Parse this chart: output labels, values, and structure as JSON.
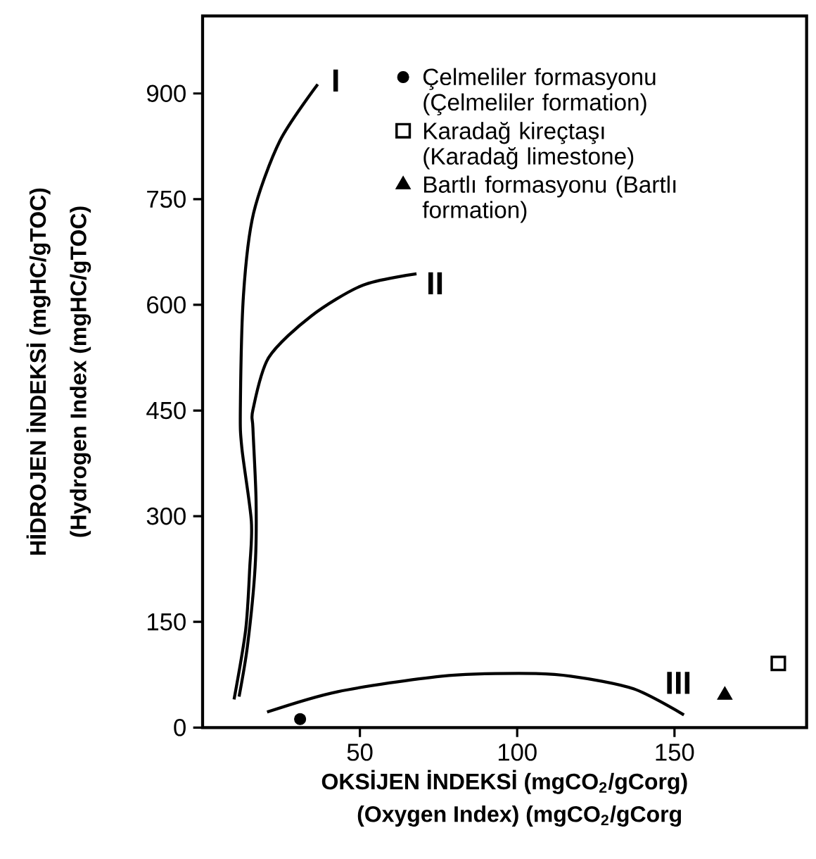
{
  "chart_data": {
    "type": "line",
    "xlabel": "OKSİJEN İNDEKSİ (mgCO$_{2}$/gCorg)",
    "ylabel": "HİDROJEN İNDEKSİ (mgHC/gTOC)",
    "xlim": [
      0,
      192
    ],
    "ylim": [
      0,
      1010
    ],
    "xticks": [
      50,
      100,
      150
    ],
    "yticks": [
      0,
      150,
      300,
      450,
      600,
      750,
      900
    ],
    "grid": false,
    "legend": "top right",
    "line_style": "solid",
    "series": [
      {
        "name": "I",
        "color": "#000000",
        "marker": "none",
        "x": [
          36.6,
          24.6,
          16.2,
          13,
          12,
          12.5,
          15.5,
          15,
          13.7,
          10
        ],
        "values": [
          913,
          833,
          730,
          614,
          451,
          396,
          293,
          228,
          139,
          40
        ]
      },
      {
        "name": "II",
        "color": "#000000",
        "marker": "none",
        "x": [
          68,
          51,
          34.5,
          21,
          16,
          16,
          17,
          16.7,
          14.3,
          11.6
        ],
        "values": [
          644,
          628,
          584,
          525,
          451,
          425,
          322,
          228,
          117,
          44
        ]
      },
      {
        "name": "III",
        "color": "#000000",
        "marker": "none",
        "x": [
          153,
          137,
          117,
          100.5,
          76,
          43,
          20.5
        ],
        "values": [
          18,
          55,
          73,
          77,
          73,
          51,
          22
        ]
      },
      {
        "type": "scatter",
        "name": "Çelmeliler formasyonu (Çelmeliler formation)",
        "color": "#000000",
        "marker": "circle",
        "x": [
          31
        ],
        "values": [
          12
        ]
      },
      {
        "type": "scatter",
        "name": "Karadağ kireçtaşı (Karadağ limestone)",
        "color": "#000000",
        "marker": "square",
        "x": [
          183
        ],
        "values": [
          91
        ]
      },
      {
        "type": "scatter",
        "name": "Bartlı formasyonu (Bartlı formation)",
        "color": "#000000",
        "marker": "triangle",
        "x": [
          166
        ],
        "values": [
          46
        ]
      }
    ],
    "annotations": [
      "(Oxygen Index) (mgCO$_{2}$/gCorg",
      "(Hydrogen Index (mgHC/gTOC)"
    ]
  }
}
